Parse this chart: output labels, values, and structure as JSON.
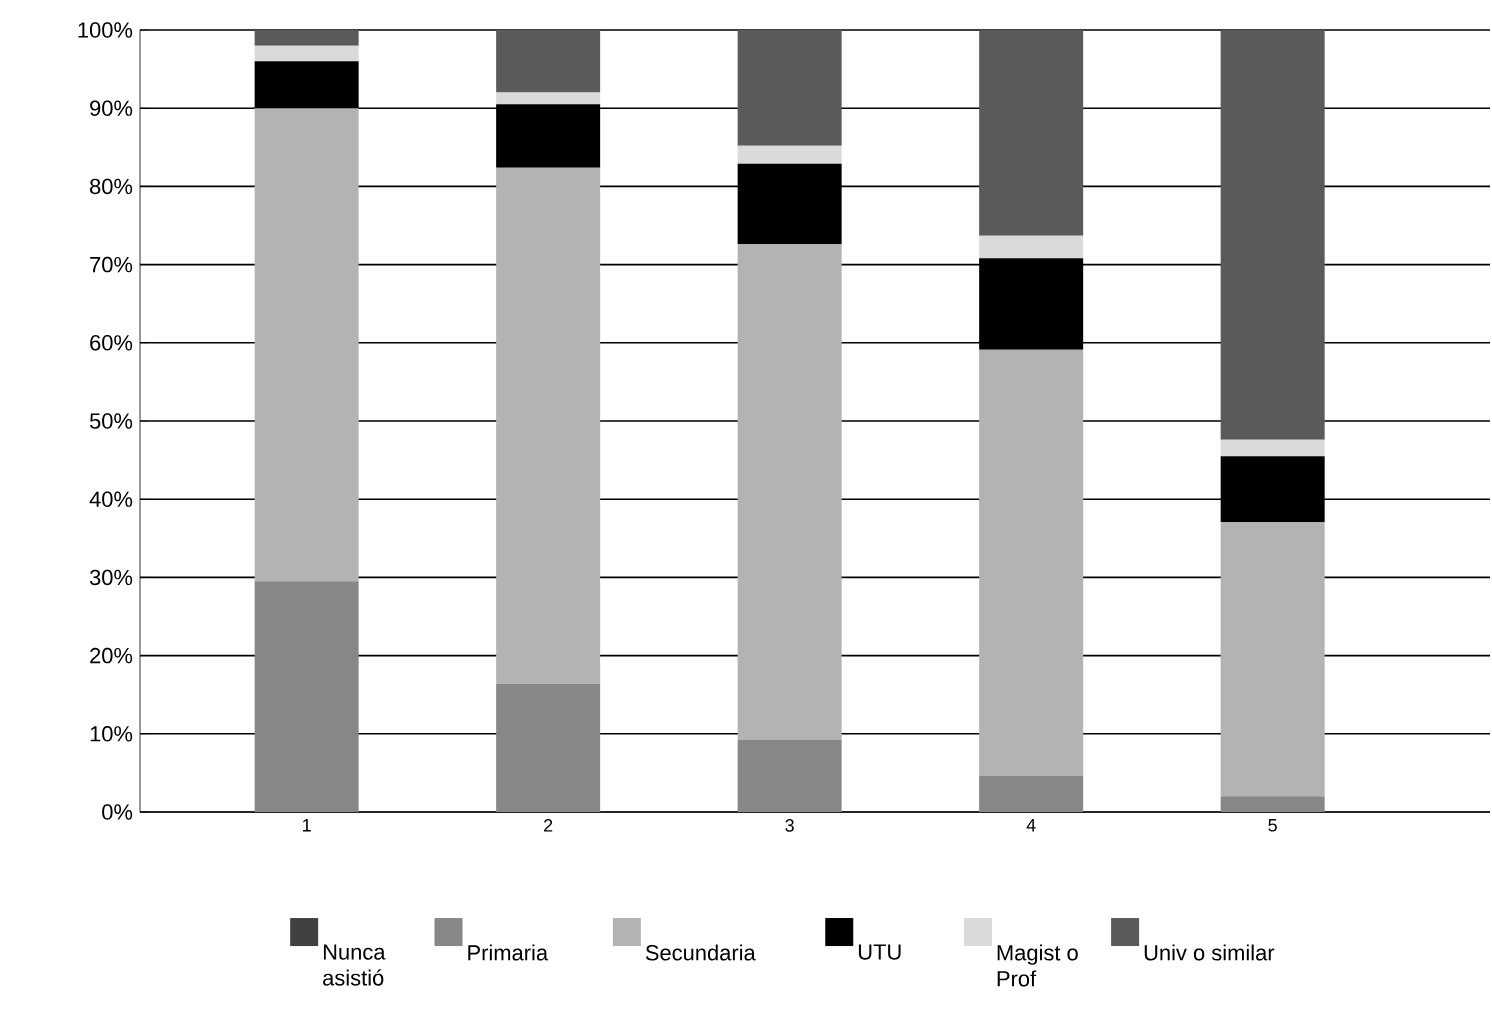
{
  "chart_data": {
    "type": "bar",
    "stacked": true,
    "categories": [
      "1",
      "2",
      "3",
      "4",
      "5"
    ],
    "series": [
      {
        "name": "Nunca asistió",
        "color": "#404040",
        "values": [
          0,
          0,
          0,
          0,
          0
        ]
      },
      {
        "name": "Primaria",
        "color": "#878787",
        "values": [
          29.5,
          16.4,
          9.2,
          4.6,
          2
        ]
      },
      {
        "name": "Secundaria",
        "color": "#b2b3b4",
        "values": [
          60.5,
          66,
          63.4,
          54.5,
          35.1
        ]
      },
      {
        "name": "UTU",
        "color": "#000000",
        "values": [
          6,
          8.1,
          10.3,
          11.7,
          8.4
        ]
      },
      {
        "name": "Magist o Prof",
        "color": "#d9dadb",
        "values": [
          2,
          1.5,
          2.3,
          2.9,
          2.1
        ]
      },
      {
        "name": "Univ o similar",
        "color": "#5a5a5c",
        "values": [
          2,
          8,
          14.8,
          26.3,
          52.4
        ]
      }
    ],
    "ylim": [
      0,
      100
    ],
    "yticks": [
      {
        "value": 0,
        "label": "0%"
      },
      {
        "value": 10,
        "label": "10%"
      },
      {
        "value": 20,
        "label": "20%"
      },
      {
        "value": 30,
        "label": "30%"
      },
      {
        "value": 40,
        "label": "40%"
      },
      {
        "value": 50,
        "label": "50%"
      },
      {
        "value": 60,
        "label": "60%"
      },
      {
        "value": 70,
        "label": "70%"
      },
      {
        "value": 80,
        "label": "80%"
      },
      {
        "value": 90,
        "label": "90%"
      },
      {
        "value": 100,
        "label": "100%"
      }
    ],
    "grid": "y",
    "legend": "bottom"
  }
}
